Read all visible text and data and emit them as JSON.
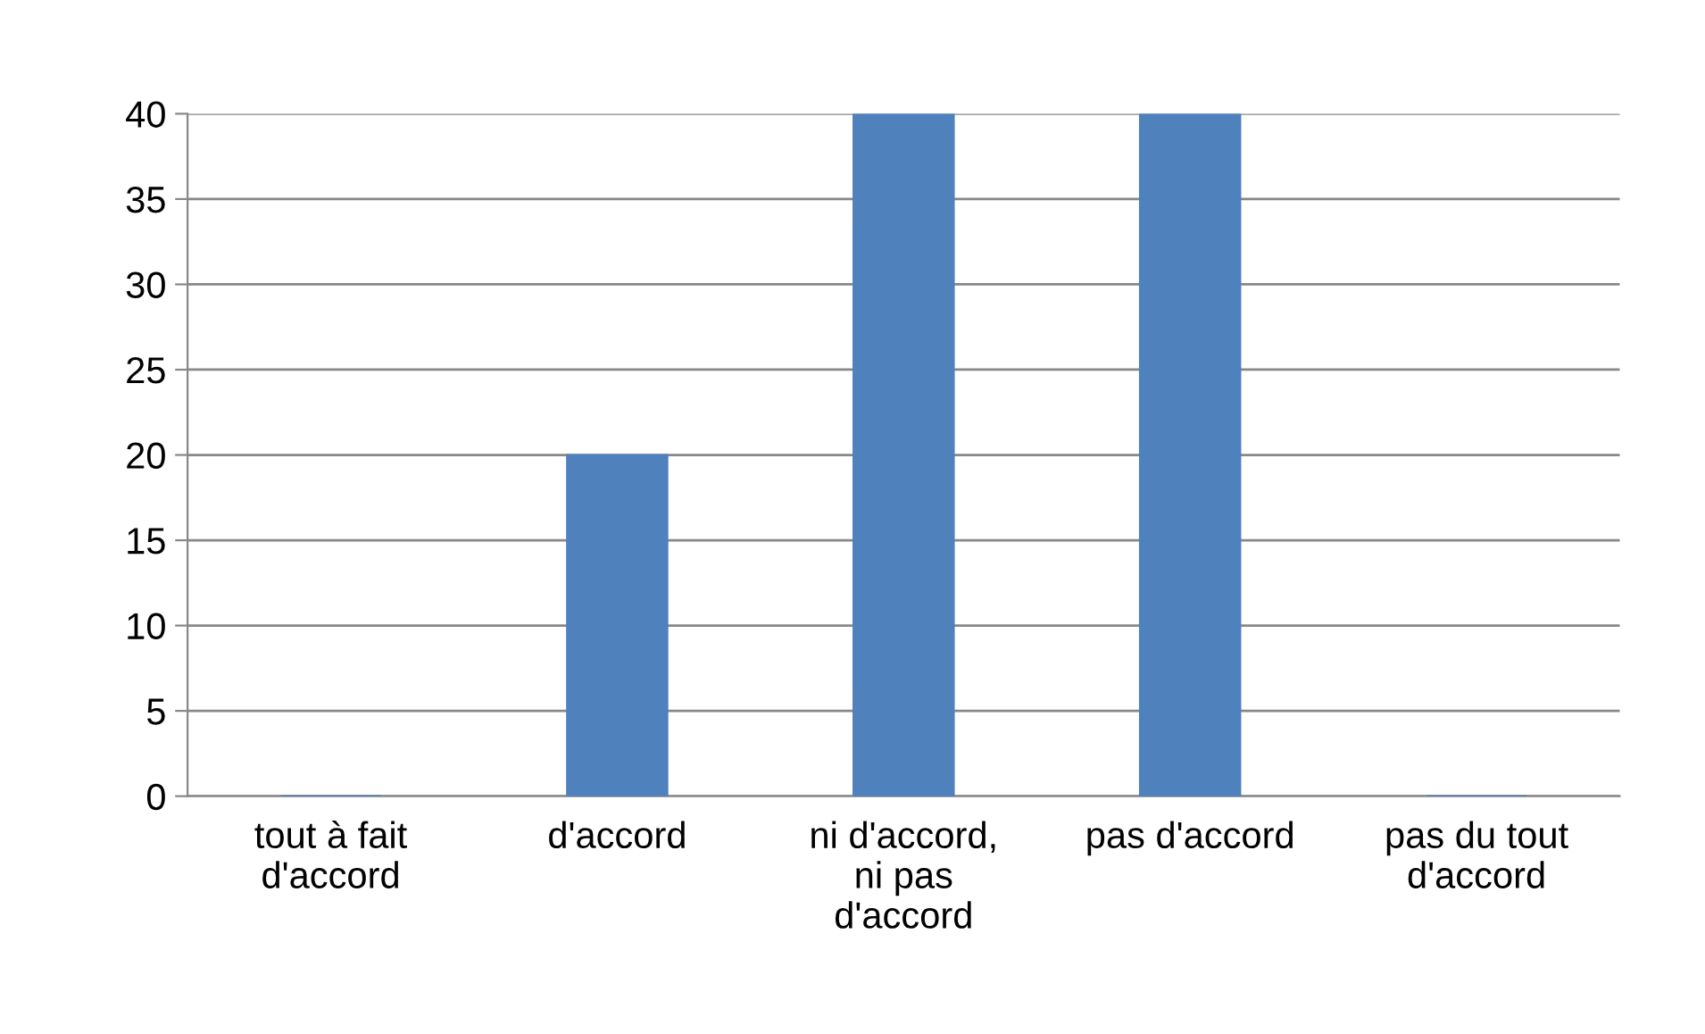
{
  "chart_data": {
    "type": "bar",
    "categories": [
      "tout à fait d'accord",
      "d'accord",
      "ni d'accord, ni pas d'accord",
      "pas d'accord",
      "pas du tout d'accord"
    ],
    "values": [
      0,
      20,
      40,
      40,
      0
    ],
    "color": "#4f81bd",
    "ylim": [
      0,
      40
    ],
    "yticks": [
      0,
      5,
      10,
      15,
      20,
      25,
      30,
      35,
      40
    ],
    "grid": "y"
  }
}
